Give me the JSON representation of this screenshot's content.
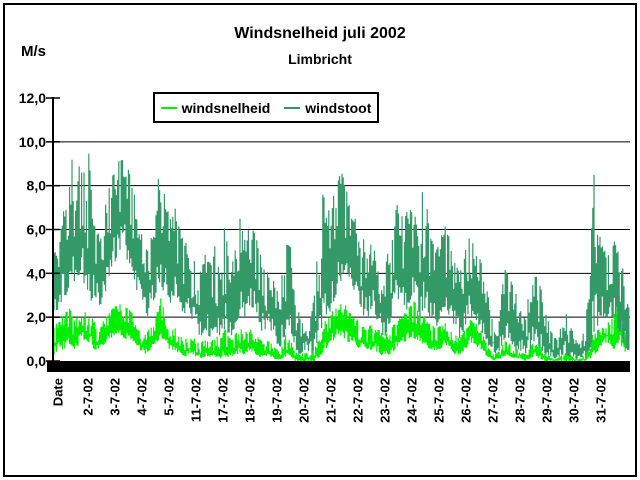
{
  "frame": {
    "background": "#ffffff",
    "border_color": "#000000"
  },
  "chart_data": {
    "type": "line",
    "title": "Windsnelheid juli 2002",
    "subtitle": "Limbricht",
    "ylabel": "M/s",
    "xlabel": "Date",
    "ylim": [
      0,
      12
    ],
    "ytick_values": [
      0,
      2,
      4,
      6,
      8,
      10,
      12
    ],
    "ytick_labels": [
      "0,0",
      "2,0",
      "4,0",
      "6,0",
      "8,0",
      "10,0",
      "12,0"
    ],
    "xtick_labels": [
      "2-7-02",
      "3-7-02",
      "4-7-02",
      "5-7-02",
      "11-7-02",
      "17-7-02",
      "18-7-02",
      "19-7-02",
      "20-7-02",
      "21-7-02",
      "22-7-02",
      "23-7-02",
      "24-7-02",
      "25-7-02",
      "26-7-02",
      "27-7-02",
      "28-7-02",
      "29-7-02",
      "30-7-02",
      "31-7-02"
    ],
    "grid": "horizontal",
    "axis_color": "#000000",
    "legend": {
      "position": "top-inside",
      "bordered": true,
      "entries": [
        "windsnelheid",
        "windstoot"
      ]
    },
    "envelope_x_domain": [
      54,
      630
    ],
    "estimation_note": "Dense 10-min line series shown as min/max envelopes estimated from the plot; values in M/s.",
    "series": [
      {
        "name": "windsnelheid",
        "color": "#00EE00",
        "envelope": [
          [
            54,
            0.3,
            1.5
          ],
          [
            60,
            0.5,
            2
          ],
          [
            65,
            0.5,
            2.2
          ],
          [
            70,
            0.8,
            2.4
          ],
          [
            75,
            0.5,
            2
          ],
          [
            80,
            0.8,
            2.2
          ],
          [
            85,
            1,
            2.5
          ],
          [
            90,
            0.8,
            2.2
          ],
          [
            95,
            0.5,
            1.8
          ],
          [
            100,
            0.5,
            1.5
          ],
          [
            105,
            0.8,
            2
          ],
          [
            110,
            1,
            2.3
          ],
          [
            115,
            1.2,
            2.5
          ],
          [
            120,
            1.2,
            2.6
          ],
          [
            125,
            1,
            2.5
          ],
          [
            130,
            1,
            2.3
          ],
          [
            135,
            0.8,
            2
          ],
          [
            140,
            0.5,
            1.5
          ],
          [
            145,
            0.3,
            1.2
          ],
          [
            150,
            0.5,
            1.5
          ],
          [
            155,
            0.8,
            2.2
          ],
          [
            160,
            1,
            3
          ],
          [
            165,
            0.8,
            2.2
          ],
          [
            170,
            0.5,
            1.8
          ],
          [
            175,
            0.5,
            1.5
          ],
          [
            180,
            0.3,
            1.2
          ],
          [
            185,
            0.2,
            1
          ],
          [
            190,
            0.3,
            1.2
          ],
          [
            195,
            0.2,
            1
          ],
          [
            200,
            0.1,
            0.8
          ],
          [
            205,
            0.2,
            1
          ],
          [
            210,
            0.1,
            0.8
          ],
          [
            215,
            0.2,
            1.2
          ],
          [
            220,
            0.1,
            1
          ],
          [
            225,
            0.2,
            1.5
          ],
          [
            230,
            0.1,
            1
          ],
          [
            235,
            0.2,
            1.2
          ],
          [
            240,
            0.3,
            1.5
          ],
          [
            245,
            0.3,
            1.3
          ],
          [
            250,
            0.5,
            1.5
          ],
          [
            255,
            0.3,
            1.2
          ],
          [
            260,
            0.2,
            1
          ],
          [
            265,
            0.1,
            0.8
          ],
          [
            270,
            0.2,
            1
          ],
          [
            275,
            0.1,
            0.6
          ],
          [
            280,
            0,
            0.4
          ],
          [
            285,
            0.2,
            1.2
          ],
          [
            290,
            0.2,
            1
          ],
          [
            295,
            0,
            0.5
          ],
          [
            300,
            0,
            0.3
          ],
          [
            305,
            0,
            0.4
          ],
          [
            310,
            0,
            0.3
          ],
          [
            315,
            0,
            0.6
          ],
          [
            320,
            0.2,
            1.2
          ],
          [
            325,
            0.5,
            1.8
          ],
          [
            330,
            0.8,
            2.2
          ],
          [
            335,
            1,
            2.5
          ],
          [
            340,
            1.2,
            2.8
          ],
          [
            345,
            1,
            2.6
          ],
          [
            350,
            0.8,
            2.2
          ],
          [
            355,
            0.8,
            2
          ],
          [
            360,
            0.5,
            1.8
          ],
          [
            365,
            0.5,
            1.5
          ],
          [
            370,
            0.5,
            1.6
          ],
          [
            375,
            0.5,
            1.8
          ],
          [
            380,
            0.3,
            1.4
          ],
          [
            385,
            0.2,
            1.2
          ],
          [
            390,
            0.3,
            1.5
          ],
          [
            395,
            0.5,
            1.8
          ],
          [
            400,
            0.8,
            2
          ],
          [
            405,
            0.8,
            2.2
          ],
          [
            410,
            1,
            2.5
          ],
          [
            415,
            1,
            2.8
          ],
          [
            420,
            0.8,
            2.3
          ],
          [
            425,
            0.8,
            2
          ],
          [
            430,
            0.5,
            1.8
          ],
          [
            435,
            0.5,
            1.5
          ],
          [
            440,
            0.5,
            1.6
          ],
          [
            445,
            0.8,
            1.8
          ],
          [
            450,
            0.5,
            1.5
          ],
          [
            455,
            0.3,
            1.2
          ],
          [
            460,
            0.3,
            1
          ],
          [
            465,
            0.5,
            1.5
          ],
          [
            470,
            0.8,
            1.9
          ],
          [
            475,
            0.8,
            1.8
          ],
          [
            480,
            0.5,
            1.5
          ],
          [
            485,
            0.3,
            1
          ],
          [
            490,
            0.1,
            0.5
          ],
          [
            495,
            0,
            0.3
          ],
          [
            500,
            0.1,
            0.5
          ],
          [
            505,
            0.2,
            1
          ],
          [
            510,
            0.2,
            0.8
          ],
          [
            515,
            0.1,
            0.6
          ],
          [
            520,
            0.1,
            0.5
          ],
          [
            525,
            0,
            0.3
          ],
          [
            530,
            0.1,
            0.6
          ],
          [
            535,
            0.2,
            1
          ],
          [
            540,
            0.1,
            0.7
          ],
          [
            545,
            0,
            0.4
          ],
          [
            550,
            0,
            0.2
          ],
          [
            555,
            0,
            0.1
          ],
          [
            560,
            0,
            0.2
          ],
          [
            565,
            0,
            0.4
          ],
          [
            570,
            0,
            0.3
          ],
          [
            575,
            0,
            0.1
          ],
          [
            580,
            0,
            0.1
          ],
          [
            585,
            0,
            0.3
          ],
          [
            590,
            0.1,
            0.8
          ],
          [
            595,
            0.3,
            1.5
          ],
          [
            600,
            0.5,
            1.5
          ],
          [
            605,
            0.8,
            1.8
          ],
          [
            610,
            0.8,
            2
          ],
          [
            614,
            0.5,
            2
          ],
          [
            618,
            0.8,
            3.5
          ],
          [
            622,
            0.5,
            2
          ],
          [
            626,
            0.3,
            1.5
          ],
          [
            630,
            0.3,
            1.5
          ]
        ]
      },
      {
        "name": "windstoot",
        "color": "#339966",
        "envelope": [
          [
            54,
            2,
            5
          ],
          [
            60,
            2.5,
            5.5
          ],
          [
            64,
            3,
            7.8
          ],
          [
            68,
            3,
            6
          ],
          [
            71,
            4,
            10.7
          ],
          [
            75,
            3.5,
            6.5
          ],
          [
            82,
            4,
            10.6
          ],
          [
            86,
            3,
            7
          ],
          [
            89,
            2.5,
            9.8
          ],
          [
            95,
            3,
            6.5
          ],
          [
            100,
            2.5,
            5.5
          ],
          [
            105,
            3,
            7
          ],
          [
            110,
            4,
            8.3
          ],
          [
            115,
            4.5,
            8.6
          ],
          [
            120,
            5,
            9.3
          ],
          [
            124,
            5,
            9.7
          ],
          [
            128,
            4.5,
            8.8
          ],
          [
            133,
            4,
            8
          ],
          [
            138,
            3,
            6.5
          ],
          [
            143,
            2.5,
            5.5
          ],
          [
            148,
            2,
            5
          ],
          [
            152,
            2.5,
            6.5
          ],
          [
            156,
            3,
            8
          ],
          [
            160,
            3.5,
            8.6
          ],
          [
            165,
            3,
            7.5
          ],
          [
            170,
            2.5,
            6.5
          ],
          [
            175,
            3,
            7
          ],
          [
            180,
            2.5,
            6
          ],
          [
            185,
            2,
            5.5
          ],
          [
            190,
            2,
            5
          ],
          [
            195,
            1.5,
            4.5
          ],
          [
            200,
            1,
            4
          ],
          [
            205,
            1.5,
            5
          ],
          [
            210,
            1,
            4.5
          ],
          [
            215,
            1.5,
            5.5
          ],
          [
            220,
            1,
            4.5
          ],
          [
            225,
            1.5,
            6.3
          ],
          [
            230,
            1,
            4
          ],
          [
            235,
            1.5,
            5
          ],
          [
            240,
            2,
            6.5
          ],
          [
            245,
            2,
            5.5
          ],
          [
            250,
            2.5,
            6.3
          ],
          [
            255,
            2,
            5.8
          ],
          [
            260,
            1.5,
            5
          ],
          [
            265,
            1,
            4
          ],
          [
            270,
            1.5,
            4.5
          ],
          [
            275,
            1,
            3.5
          ],
          [
            280,
            0.5,
            3
          ],
          [
            285,
            1,
            5.3
          ],
          [
            290,
            1.5,
            5.5
          ],
          [
            295,
            0.5,
            3
          ],
          [
            300,
            0.3,
            2
          ],
          [
            305,
            0.5,
            2.5
          ],
          [
            310,
            0.3,
            2
          ],
          [
            315,
            0.5,
            3.5
          ],
          [
            320,
            1,
            6.5
          ],
          [
            324,
            2,
            8.2
          ],
          [
            328,
            2,
            7
          ],
          [
            332,
            2.5,
            7.5
          ],
          [
            336,
            3,
            8
          ],
          [
            340,
            3.5,
            8.8
          ],
          [
            344,
            4,
            8.3
          ],
          [
            348,
            4,
            7.5
          ],
          [
            352,
            3.5,
            6.5
          ],
          [
            356,
            3,
            6.5
          ],
          [
            360,
            2.5,
            6
          ],
          [
            364,
            2,
            5.5
          ],
          [
            368,
            2,
            5
          ],
          [
            372,
            2.5,
            5.5
          ],
          [
            376,
            2,
            5
          ],
          [
            380,
            1.5,
            4.5
          ],
          [
            384,
            1,
            4
          ],
          [
            388,
            1.5,
            5
          ],
          [
            392,
            2,
            6
          ],
          [
            396,
            2.5,
            7
          ],
          [
            400,
            2.5,
            7.5
          ],
          [
            404,
            2,
            6.5
          ],
          [
            408,
            2.5,
            7.2
          ],
          [
            412,
            3,
            7
          ],
          [
            416,
            2.5,
            6.5
          ],
          [
            420,
            2,
            6
          ],
          [
            424,
            2.5,
            8.9
          ],
          [
            428,
            2,
            6.5
          ],
          [
            432,
            2,
            5.5
          ],
          [
            436,
            1.5,
            5
          ],
          [
            440,
            2,
            5.5
          ],
          [
            445,
            2.5,
            6.3
          ],
          [
            450,
            2,
            5.5
          ],
          [
            455,
            1.5,
            4.5
          ],
          [
            460,
            1,
            4
          ],
          [
            465,
            1.5,
            5
          ],
          [
            470,
            2,
            5.7
          ],
          [
            475,
            2,
            5.5
          ],
          [
            480,
            1.5,
            5
          ],
          [
            485,
            1,
            4
          ],
          [
            490,
            0.5,
            2.5
          ],
          [
            495,
            0.3,
            1.5
          ],
          [
            500,
            0.5,
            2.5
          ],
          [
            505,
            1,
            4.3
          ],
          [
            510,
            1,
            4
          ],
          [
            515,
            0.5,
            3.5
          ],
          [
            520,
            0.5,
            3
          ],
          [
            525,
            0.3,
            2
          ],
          [
            530,
            0.5,
            3.5
          ],
          [
            535,
            1,
            4.2
          ],
          [
            540,
            0.5,
            3.5
          ],
          [
            545,
            0.3,
            2.5
          ],
          [
            550,
            0.2,
            1.5
          ],
          [
            555,
            0.1,
            1
          ],
          [
            560,
            0.2,
            1.5
          ],
          [
            565,
            0.3,
            2.5
          ],
          [
            570,
            0.2,
            1.8
          ],
          [
            575,
            0.1,
            1
          ],
          [
            580,
            0.1,
            0.8
          ],
          [
            585,
            0.2,
            1.5
          ],
          [
            590,
            0.5,
            4
          ],
          [
            594,
            1,
            9.3
          ],
          [
            598,
            1.5,
            6
          ],
          [
            602,
            2,
            5.5
          ],
          [
            606,
            2,
            5
          ],
          [
            610,
            2,
            5.2
          ],
          [
            614,
            2,
            5.5
          ],
          [
            618,
            1.5,
            5
          ],
          [
            622,
            1,
            4.5
          ],
          [
            626,
            0.5,
            3.5
          ],
          [
            630,
            0.5,
            2
          ]
        ]
      }
    ]
  }
}
